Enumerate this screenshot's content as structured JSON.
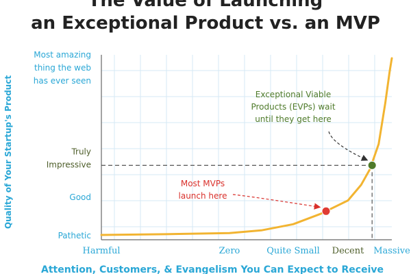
{
  "chart_data": {
    "type": "line",
    "title_line1": "The Value of Launching",
    "title_line2": "an Exceptional Product vs. an MVP",
    "xlabel": "Attention, Customers, & Evangelism You Can Expect to Receive",
    "ylabel": "Quality of Your Startup's Product",
    "x_ticks": [
      "Harmful",
      "Zero",
      "Quite Small",
      "Decent",
      "Massive"
    ],
    "y_ticks": [
      {
        "lines": [
          "Pathetic"
        ]
      },
      {
        "lines": [
          "Good"
        ]
      },
      {
        "lines": [
          "Truly",
          "Impressive"
        ]
      },
      {
        "lines": [
          "Most amazing",
          "thing the web",
          "has ever seen"
        ]
      }
    ],
    "xlim": [
      0,
      4
    ],
    "ylim": [
      0,
      3
    ],
    "grid": true,
    "series": [
      {
        "color": "#f2b431",
        "x": [
          0,
          0.5,
          1.0,
          1.5,
          2.0,
          2.5,
          3.0,
          3.3,
          3.5,
          3.7,
          3.85,
          3.95,
          4.0
        ],
        "y": [
          0.0,
          0.02,
          0.05,
          0.12,
          0.28,
          0.55,
          0.9,
          1.3,
          1.7,
          2.15,
          2.6,
          2.95,
          3.1
        ]
      }
    ],
    "points": [
      {
        "label": "MVP",
        "x": 2.6,
        "y": 0.62,
        "color": "#e03b33"
      },
      {
        "label": "EVP",
        "x": 3.55,
        "y": 1.8,
        "color": "#4e7a2a"
      }
    ],
    "annotations": [
      {
        "lines": [
          "Most MVPs",
          "launch here"
        ],
        "color": "#d9302b",
        "x": 2.0,
        "y": 1.0
      },
      {
        "lines": [
          "Exceptional Viable",
          "Products (EVPs) wait",
          "until they get here"
        ],
        "color": "#4e7a2a",
        "x": 3.2,
        "y": 2.4
      }
    ],
    "colors": {
      "tick_text": "#2aa7d6",
      "ytick_highlight": "#4e5e2a",
      "xtick_highlight": "#4e5e2a",
      "grid": "#d6e9f4",
      "axis": "#666666"
    }
  }
}
